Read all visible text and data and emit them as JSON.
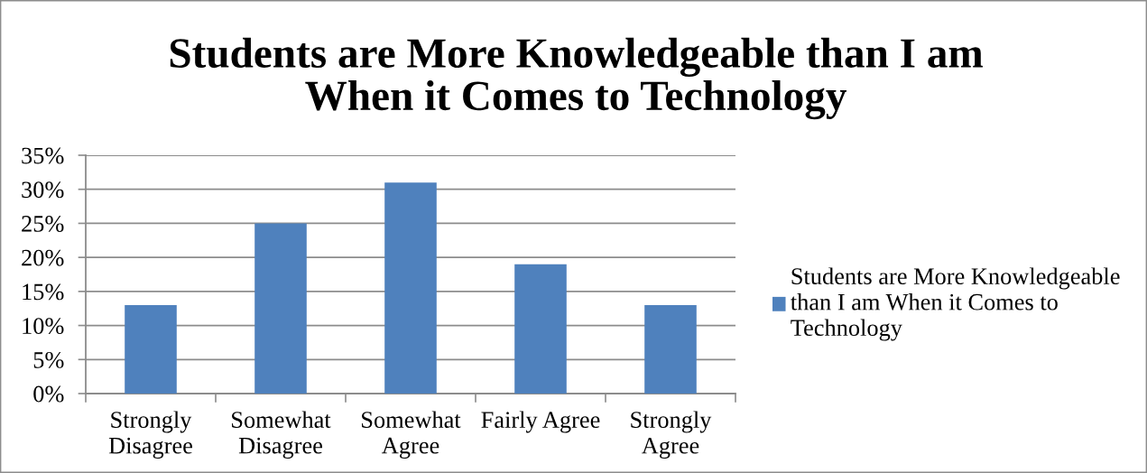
{
  "chart_data": {
    "type": "bar",
    "title": "Students are More Knowledgeable than I am When it Comes to Technology",
    "categories": [
      "Strongly Disagree",
      "Somewhat Disagree",
      "Somewhat Agree",
      "Fairly Agree",
      "Strongly Agree"
    ],
    "series": [
      {
        "name": "Students are More Knowledgeable than I am When it Comes to Technology",
        "color": "#4f81bd",
        "values": [
          13,
          25,
          31,
          19,
          13
        ]
      }
    ],
    "ylim": [
      0,
      35
    ],
    "yticks": [
      {
        "value": 0,
        "label": "0%"
      },
      {
        "value": 5,
        "label": "5%"
      },
      {
        "value": 10,
        "label": "10%"
      },
      {
        "value": 15,
        "label": "15%"
      },
      {
        "value": 20,
        "label": "20%"
      },
      {
        "value": 25,
        "label": "25%"
      },
      {
        "value": 30,
        "label": "30%"
      },
      {
        "value": 35,
        "label": "35%"
      }
    ],
    "grid": "y",
    "legend": "right"
  }
}
